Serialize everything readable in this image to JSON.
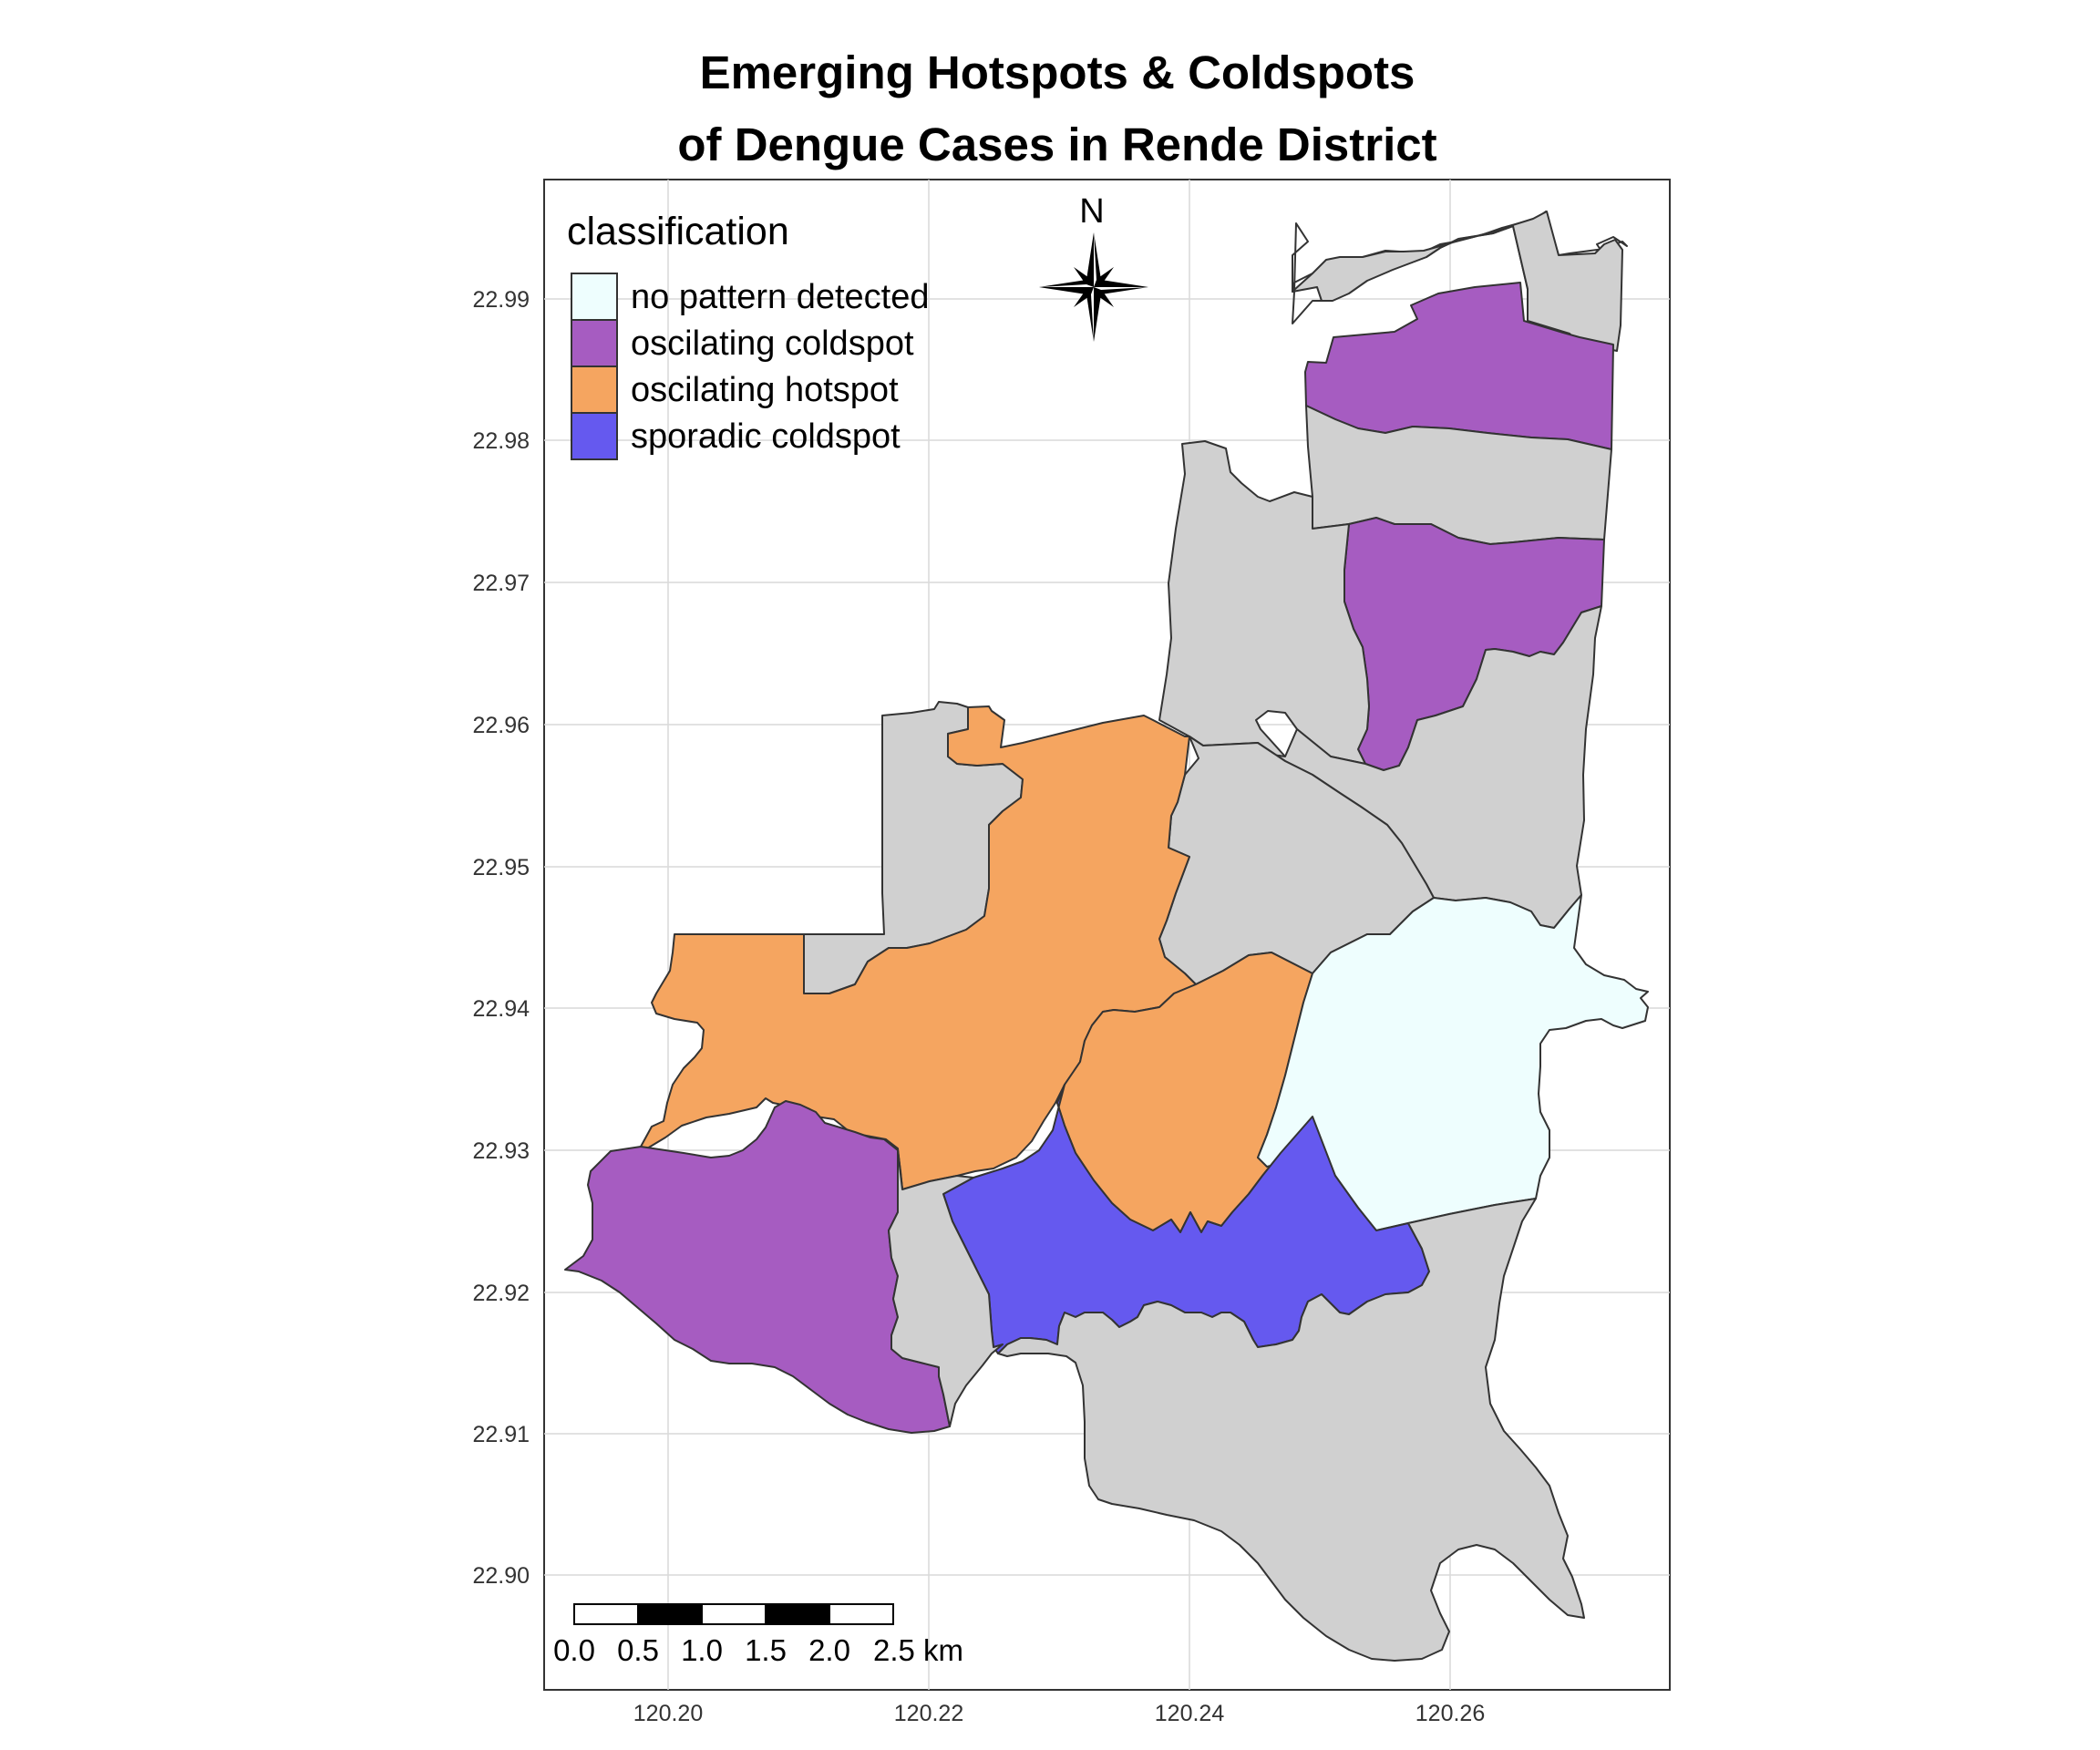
{
  "title_line1": "Emerging Hotspots & Coldspots",
  "title_line2": "of Dengue Cases in Rende District",
  "colors": {
    "no_data": "#d0d0d0",
    "no pattern detected": "#eefefe",
    "oscilating coldspot": "#a65cc1",
    "oscilating hotspot": "#f5a560",
    "sporadic coldspot": "#6559ef"
  },
  "legend": {
    "title": "classification",
    "items": [
      {
        "label": "no pattern detected",
        "color": "#eefefe"
      },
      {
        "label": "oscilating coldspot",
        "color": "#a65cc1"
      },
      {
        "label": "oscilating hotspot",
        "color": "#f5a560"
      },
      {
        "label": "sporadic coldspot",
        "color": "#6559ef"
      }
    ]
  },
  "axes": {
    "y_ticks": [
      "22.99",
      "22.98",
      "22.97",
      "22.96",
      "22.95",
      "22.94",
      "22.93",
      "22.92",
      "22.91",
      "22.90"
    ],
    "x_ticks": [
      "120.20",
      "120.22",
      "120.24",
      "120.26"
    ]
  },
  "north_arrow": {
    "label": "N",
    "icon": "compass-rose-icon"
  },
  "scale_bar": {
    "labels": [
      "0.0",
      "0.5",
      "1.0",
      "1.5",
      "2.0",
      "2.5 km"
    ]
  },
  "regions": [
    {
      "name": "north-top",
      "class": ""
    },
    {
      "name": "north-purple",
      "class": "oscilating coldspot"
    },
    {
      "name": "north-mid-gray",
      "class": ""
    },
    {
      "name": "north-lower-purple",
      "class": "oscilating coldspot"
    },
    {
      "name": "center-north-gray",
      "class": ""
    },
    {
      "name": "east-middle-gray",
      "class": ""
    },
    {
      "name": "middle-gray",
      "class": ""
    },
    {
      "name": "northwest-gray",
      "class": ""
    },
    {
      "name": "big-orange",
      "class": "oscilating hotspot"
    },
    {
      "name": "center-orange",
      "class": "oscilating hotspot"
    },
    {
      "name": "east-cyan",
      "class": "no pattern detected"
    },
    {
      "name": "sporadic-blue",
      "class": "sporadic coldspot"
    },
    {
      "name": "southwest-purple",
      "class": "oscilating coldspot"
    },
    {
      "name": "south-west-gray",
      "class": ""
    },
    {
      "name": "south-big-gray",
      "class": ""
    }
  ]
}
